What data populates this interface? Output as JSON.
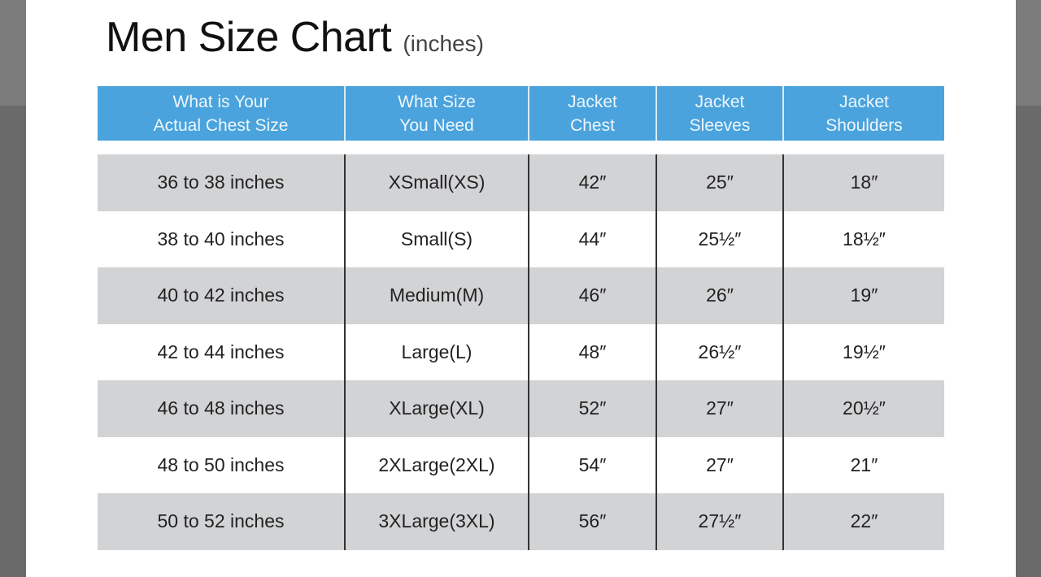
{
  "title": "Men Size Chart",
  "title_unit": "(inches)",
  "colors": {
    "header": "#4aa3dc",
    "shaded_row": "#d2d3d5"
  },
  "table": {
    "headers": [
      "What is Your\nActual Chest Size",
      "What Size\nYou Need",
      "Jacket\nChest",
      "Jacket\nSleeves",
      "Jacket\nShoulders"
    ],
    "rows": [
      [
        "36 to 38 inches",
        "XSmall(XS)",
        "42″",
        "25″",
        "18″"
      ],
      [
        "38 to 40 inches",
        "Small(S)",
        "44″",
        "25½″",
        "18½″"
      ],
      [
        "40 to 42 inches",
        "Medium(M)",
        "46″",
        "26″",
        "19″"
      ],
      [
        "42 to 44 inches",
        "Large(L)",
        "48″",
        "26½″",
        "19½″"
      ],
      [
        "46 to 48 inches",
        "XLarge(XL)",
        "52″",
        "27″",
        "20½″"
      ],
      [
        "48 to 50 inches",
        "2XLarge(2XL)",
        "54″",
        "27″",
        "21″"
      ],
      [
        "50 to 52 inches",
        "3XLarge(3XL)",
        "56″",
        "27½″",
        "22″"
      ]
    ]
  }
}
